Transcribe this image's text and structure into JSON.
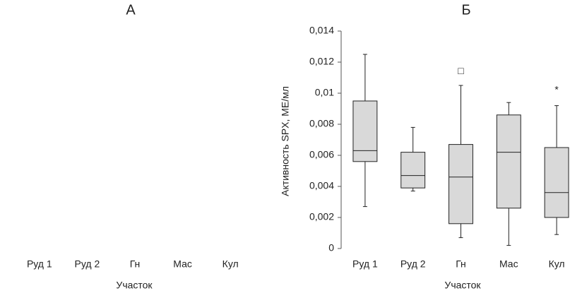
{
  "chart_data": [
    {
      "type": "empty",
      "title": "А",
      "xlabel": "Участок",
      "categories": [
        "Руд 1",
        "Руд 2",
        "Гн",
        "Мас",
        "Кул"
      ]
    },
    {
      "type": "box",
      "title": "Б",
      "xlabel": "Участок",
      "ylabel": "Активность SPX, МЕ/мл",
      "categories": [
        "Руд 1",
        "Руд 2",
        "Гн",
        "Мас",
        "Кул"
      ],
      "color": "#d9d9d9",
      "series": [
        {
          "min": [
            0.0027,
            0.0037,
            0.0007,
            0.0002,
            0.0009
          ],
          "q1": [
            0.0056,
            0.0039,
            0.0016,
            0.0026,
            0.002
          ],
          "median": [
            0.0063,
            0.0047,
            0.0046,
            0.0062,
            0.0036
          ],
          "q3": [
            0.0095,
            0.0062,
            0.0067,
            0.0086,
            0.0065
          ],
          "max": [
            0.0125,
            0.0078,
            0.0105,
            0.0094,
            0.0092
          ]
        }
      ],
      "annotations": [
        {
          "category": 2,
          "text": "□",
          "y": 0.0114
        },
        {
          "category": 4,
          "text": "*",
          "y": 0.0102
        }
      ],
      "ylim": [
        0,
        0.014
      ],
      "yticks": [
        0,
        {
          "value": 0.002,
          "label": "0,002"
        },
        {
          "value": 0.004,
          "label": "0,004"
        },
        {
          "value": 0.006,
          "label": "0,006"
        },
        {
          "value": 0.008,
          "label": "0,008"
        },
        {
          "value": 0.01,
          "label": "0,01"
        },
        {
          "value": 0.012,
          "label": "0,012"
        },
        {
          "value": 0.014,
          "label": "0,014"
        }
      ]
    }
  ]
}
